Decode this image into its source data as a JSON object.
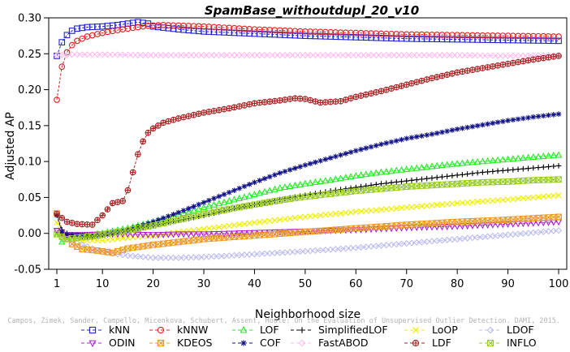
{
  "chart_data": {
    "type": "line",
    "title": "SpamBase_withoutdupl_20_v10",
    "xlabel": "Neighborhood size",
    "ylabel": "Adjusted AP",
    "xlim": [
      1,
      100
    ],
    "ylim": [
      -0.05,
      0.3
    ],
    "xticks": [
      1,
      10,
      20,
      30,
      40,
      50,
      60,
      70,
      80,
      90,
      100
    ],
    "yticks": [
      -0.05,
      0.0,
      0.05,
      0.1,
      0.15,
      0.2,
      0.25,
      0.3
    ],
    "ytick_labels": [
      "-0.05",
      "0.00",
      "0.05",
      "0.10",
      "0.15",
      "0.20",
      "0.25",
      "0.30"
    ],
    "grid": false,
    "legend_position": "bottom",
    "watermark": "Campos, Zimek, Sander, Campello, Micenkova, Schubert, Assent, Houle: On the Evaluation of Unsupervised Outlier Detection. DAMI, 2015.",
    "series": [
      {
        "name": "kNN",
        "color": "#2222dd",
        "marker": "square",
        "linestyle": "dashed",
        "points": [
          [
            1,
            0.247
          ],
          [
            2,
            0.266
          ],
          [
            3,
            0.276
          ],
          [
            4,
            0.282
          ],
          [
            5,
            0.285
          ],
          [
            7,
            0.287
          ],
          [
            10,
            0.288
          ],
          [
            13,
            0.29
          ],
          [
            15,
            0.292
          ],
          [
            17,
            0.294
          ],
          [
            19,
            0.292
          ],
          [
            20,
            0.288
          ],
          [
            25,
            0.284
          ],
          [
            30,
            0.281
          ],
          [
            40,
            0.278
          ],
          [
            50,
            0.275
          ],
          [
            60,
            0.273
          ],
          [
            70,
            0.271
          ],
          [
            80,
            0.27
          ],
          [
            90,
            0.269
          ],
          [
            100,
            0.268
          ]
        ]
      },
      {
        "name": "kNNW",
        "color": "#e02020",
        "marker": "circle",
        "linestyle": "dashed",
        "points": [
          [
            1,
            0.186
          ],
          [
            2,
            0.232
          ],
          [
            3,
            0.252
          ],
          [
            4,
            0.262
          ],
          [
            5,
            0.268
          ],
          [
            7,
            0.274
          ],
          [
            10,
            0.279
          ],
          [
            13,
            0.283
          ],
          [
            16,
            0.286
          ],
          [
            19,
            0.289
          ],
          [
            22,
            0.29
          ],
          [
            30,
            0.288
          ],
          [
            40,
            0.284
          ],
          [
            50,
            0.281
          ],
          [
            60,
            0.279
          ],
          [
            70,
            0.277
          ],
          [
            80,
            0.276
          ],
          [
            90,
            0.275
          ],
          [
            100,
            0.274
          ]
        ]
      },
      {
        "name": "LOF",
        "color": "#22ee22",
        "marker": "triangle-up",
        "linestyle": "dashed",
        "points": [
          [
            1,
            -0.002
          ],
          [
            2,
            -0.012
          ],
          [
            4,
            -0.005
          ],
          [
            6,
            -0.003
          ],
          [
            8,
            -0.002
          ],
          [
            10,
            0.0
          ],
          [
            12,
            0.003
          ],
          [
            15,
            0.007
          ],
          [
            20,
            0.016
          ],
          [
            25,
            0.026
          ],
          [
            30,
            0.036
          ],
          [
            35,
            0.045
          ],
          [
            40,
            0.054
          ],
          [
            45,
            0.063
          ],
          [
            50,
            0.069
          ],
          [
            55,
            0.074
          ],
          [
            60,
            0.08
          ],
          [
            65,
            0.085
          ],
          [
            70,
            0.089
          ],
          [
            75,
            0.093
          ],
          [
            80,
            0.097
          ],
          [
            85,
            0.1
          ],
          [
            90,
            0.103
          ],
          [
            95,
            0.106
          ],
          [
            100,
            0.109
          ]
        ]
      },
      {
        "name": "SimplifiedLOF",
        "color": "#000000",
        "marker": "plus",
        "linestyle": "dashed",
        "points": [
          [
            1,
            0.027
          ],
          [
            2,
            0.005
          ],
          [
            3,
            0.0
          ],
          [
            5,
            -0.004
          ],
          [
            8,
            -0.005
          ],
          [
            10,
            -0.003
          ],
          [
            12,
            0.0
          ],
          [
            15,
            0.004
          ],
          [
            20,
            0.011
          ],
          [
            25,
            0.018
          ],
          [
            30,
            0.025
          ],
          [
            35,
            0.033
          ],
          [
            40,
            0.04
          ],
          [
            45,
            0.047
          ],
          [
            50,
            0.053
          ],
          [
            55,
            0.059
          ],
          [
            60,
            0.064
          ],
          [
            65,
            0.069
          ],
          [
            70,
            0.073
          ],
          [
            75,
            0.077
          ],
          [
            80,
            0.081
          ],
          [
            85,
            0.085
          ],
          [
            90,
            0.088
          ],
          [
            95,
            0.091
          ],
          [
            100,
            0.094
          ]
        ]
      },
      {
        "name": "LoOP",
        "color": "#eeee00",
        "marker": "x",
        "linestyle": "dashed",
        "points": [
          [
            1,
            0.015
          ],
          [
            2,
            -0.005
          ],
          [
            5,
            -0.01
          ],
          [
            10,
            -0.01
          ],
          [
            15,
            -0.006
          ],
          [
            20,
            -0.003
          ],
          [
            30,
            0.006
          ],
          [
            40,
            0.015
          ],
          [
            50,
            0.023
          ],
          [
            60,
            0.03
          ],
          [
            70,
            0.036
          ],
          [
            80,
            0.042
          ],
          [
            90,
            0.047
          ],
          [
            100,
            0.053
          ]
        ]
      },
      {
        "name": "LDOF",
        "color": "#bbbbee",
        "marker": "diamond",
        "linestyle": "dashed",
        "points": [
          [
            1,
            0.003
          ],
          [
            3,
            -0.008
          ],
          [
            6,
            -0.016
          ],
          [
            10,
            -0.026
          ],
          [
            15,
            -0.031
          ],
          [
            20,
            -0.034
          ],
          [
            25,
            -0.034
          ],
          [
            30,
            -0.033
          ],
          [
            35,
            -0.031
          ],
          [
            40,
            -0.029
          ],
          [
            50,
            -0.025
          ],
          [
            60,
            -0.02
          ],
          [
            70,
            -0.014
          ],
          [
            80,
            -0.008
          ],
          [
            90,
            -0.002
          ],
          [
            100,
            0.004
          ]
        ]
      },
      {
        "name": "ODIN",
        "color": "#aa22cc",
        "marker": "triangle-down",
        "linestyle": "dashed",
        "points": [
          [
            1,
            0.004
          ],
          [
            3,
            -0.002
          ],
          [
            6,
            -0.002
          ],
          [
            10,
            -0.001
          ],
          [
            15,
            -0.001
          ],
          [
            20,
            -0.002
          ],
          [
            25,
            -0.001
          ],
          [
            30,
            -0.001
          ],
          [
            40,
            0.001
          ],
          [
            50,
            0.003
          ],
          [
            60,
            0.005
          ],
          [
            70,
            0.008
          ],
          [
            80,
            0.01
          ],
          [
            90,
            0.013
          ],
          [
            100,
            0.016
          ]
        ]
      },
      {
        "name": "KDEOS",
        "color": "#ee9922",
        "marker": "x-square",
        "linestyle": "dashed",
        "points": [
          [
            1,
            0.028
          ],
          [
            2,
            0.0
          ],
          [
            4,
            -0.015
          ],
          [
            6,
            -0.022
          ],
          [
            9,
            -0.024
          ],
          [
            12,
            -0.027
          ],
          [
            15,
            -0.021
          ],
          [
            20,
            -0.016
          ],
          [
            25,
            -0.012
          ],
          [
            30,
            -0.008
          ],
          [
            40,
            -0.003
          ],
          [
            50,
            0.002
          ],
          [
            60,
            0.007
          ],
          [
            70,
            0.012
          ],
          [
            80,
            0.016
          ],
          [
            90,
            0.019
          ],
          [
            100,
            0.023
          ]
        ]
      },
      {
        "name": "COF",
        "color": "#111188",
        "marker": "star",
        "linestyle": "dashed",
        "points": [
          [
            1,
            0.025
          ],
          [
            2,
            0.002
          ],
          [
            3,
            -0.002
          ],
          [
            5,
            -0.002
          ],
          [
            8,
            -0.003
          ],
          [
            10,
            -0.002
          ],
          [
            12,
            0.0
          ],
          [
            15,
            0.005
          ],
          [
            20,
            0.016
          ],
          [
            25,
            0.029
          ],
          [
            30,
            0.043
          ],
          [
            35,
            0.057
          ],
          [
            40,
            0.071
          ],
          [
            45,
            0.084
          ],
          [
            50,
            0.095
          ],
          [
            55,
            0.105
          ],
          [
            60,
            0.115
          ],
          [
            65,
            0.124
          ],
          [
            70,
            0.132
          ],
          [
            75,
            0.138
          ],
          [
            80,
            0.145
          ],
          [
            85,
            0.151
          ],
          [
            90,
            0.157
          ],
          [
            95,
            0.162
          ],
          [
            100,
            0.166
          ]
        ]
      },
      {
        "name": "FastABOD",
        "color": "#ffbbee",
        "marker": "diamond",
        "linestyle": "dashed",
        "points": [
          [
            1,
            0.248
          ],
          [
            5,
            0.249
          ],
          [
            10,
            0.249
          ],
          [
            20,
            0.248
          ],
          [
            30,
            0.248
          ],
          [
            40,
            0.248
          ],
          [
            50,
            0.248
          ],
          [
            60,
            0.248
          ],
          [
            70,
            0.248
          ],
          [
            80,
            0.248
          ],
          [
            90,
            0.247
          ],
          [
            100,
            0.248
          ]
        ]
      },
      {
        "name": "LDF",
        "color": "#aa2222",
        "marker": "circle-plus",
        "linestyle": "dashed",
        "points": [
          [
            1,
            0.027
          ],
          [
            3,
            0.016
          ],
          [
            5,
            0.013
          ],
          [
            8,
            0.012
          ],
          [
            10,
            0.025
          ],
          [
            12,
            0.042
          ],
          [
            14,
            0.045
          ],
          [
            15,
            0.06
          ],
          [
            16,
            0.085
          ],
          [
            17,
            0.11
          ],
          [
            18,
            0.128
          ],
          [
            19,
            0.14
          ],
          [
            20,
            0.146
          ],
          [
            22,
            0.154
          ],
          [
            25,
            0.16
          ],
          [
            30,
            0.168
          ],
          [
            35,
            0.174
          ],
          [
            40,
            0.181
          ],
          [
            45,
            0.185
          ],
          [
            48,
            0.188
          ],
          [
            50,
            0.187
          ],
          [
            53,
            0.182
          ],
          [
            57,
            0.184
          ],
          [
            60,
            0.19
          ],
          [
            65,
            0.198
          ],
          [
            70,
            0.207
          ],
          [
            75,
            0.216
          ],
          [
            80,
            0.224
          ],
          [
            85,
            0.23
          ],
          [
            90,
            0.236
          ],
          [
            95,
            0.242
          ],
          [
            100,
            0.247
          ]
        ]
      },
      {
        "name": "INFLO",
        "color": "#99cc22",
        "marker": "x-square",
        "linestyle": "dashed",
        "points": [
          [
            1,
            -0.001
          ],
          [
            3,
            -0.008
          ],
          [
            5,
            -0.006
          ],
          [
            8,
            -0.004
          ],
          [
            10,
            -0.002
          ],
          [
            12,
            0.001
          ],
          [
            15,
            0.004
          ],
          [
            20,
            0.011
          ],
          [
            25,
            0.019
          ],
          [
            30,
            0.027
          ],
          [
            35,
            0.034
          ],
          [
            40,
            0.04
          ],
          [
            45,
            0.046
          ],
          [
            50,
            0.051
          ],
          [
            55,
            0.055
          ],
          [
            60,
            0.059
          ],
          [
            65,
            0.062
          ],
          [
            70,
            0.065
          ],
          [
            75,
            0.067
          ],
          [
            80,
            0.069
          ],
          [
            85,
            0.071
          ],
          [
            90,
            0.072
          ],
          [
            95,
            0.074
          ],
          [
            100,
            0.075
          ]
        ]
      }
    ],
    "legend_rows": [
      [
        "kNN",
        "kNNW",
        "LOF",
        "SimplifiedLOF",
        "LoOP",
        "LDOF"
      ],
      [
        "ODIN",
        "KDEOS",
        "COF",
        "FastABOD",
        "LDF",
        "INFLO"
      ]
    ]
  }
}
